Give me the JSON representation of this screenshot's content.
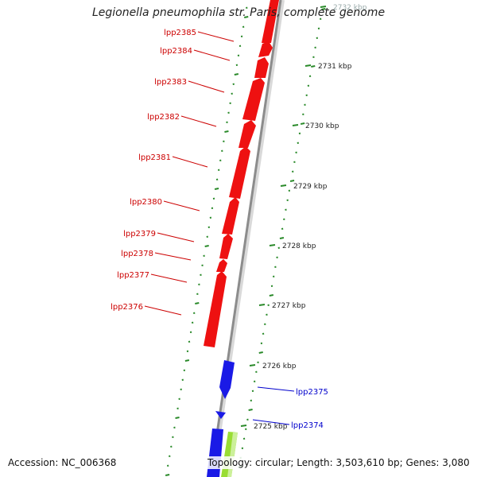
{
  "title": "Legionella pneumophila str. Paris, complete genome",
  "accession": "Accession: NC_006368",
  "summary": "Topology: circular; Length: 3,503,610 bp; Genes: 3,080",
  "colors": {
    "forward_gene": "#ee1111",
    "reverse_gene": "#1a1ae6",
    "other_feature": "#99dd33",
    "backbone": "#8c8c8c",
    "ticks": "#2a8a2a",
    "forward_label": "#cc0000",
    "reverse_label": "#0000cc"
  },
  "ruler": [
    {
      "label": "2732 kbp"
    },
    {
      "label": "2731 kbp"
    },
    {
      "label": "2730 kbp"
    },
    {
      "label": "2729 kbp"
    },
    {
      "label": "2728 kbp"
    },
    {
      "label": "2727 kbp"
    },
    {
      "label": "2726 kbp"
    },
    {
      "label": "2725 kbp"
    }
  ],
  "forward_genes": [
    {
      "name": "lpp2385"
    },
    {
      "name": "lpp2384"
    },
    {
      "name": "lpp2383"
    },
    {
      "name": "lpp2382"
    },
    {
      "name": "lpp2381"
    },
    {
      "name": "lpp2380"
    },
    {
      "name": "lpp2379"
    },
    {
      "name": "lpp2378"
    },
    {
      "name": "lpp2377"
    },
    {
      "name": "lpp2376"
    }
  ],
  "reverse_genes": [
    {
      "name": "lpp2375"
    },
    {
      "name": "lpp2374"
    }
  ]
}
